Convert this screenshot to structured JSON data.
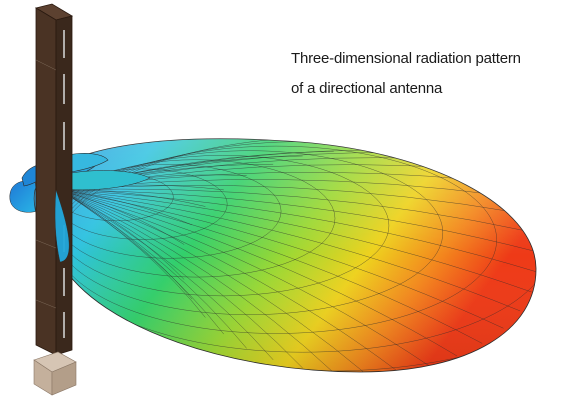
{
  "caption": {
    "line1": "Three-dimensional radiation pattern",
    "line2": "of a directional antenna"
  },
  "colors": {
    "background": "#ffffff",
    "mast": "#4a3324",
    "mast_edge": "#2a1a10",
    "mast_base": "#c9b8a8",
    "mesh_line": "#2b2b2b",
    "gradient_back": "#2f9be6",
    "gradient_mid": "#33cc55",
    "gradient_warm": "#e8d21c",
    "gradient_front": "#f0401a"
  },
  "icons": {
    "mast": "antenna-mast",
    "lobe": "radiation-lobe"
  }
}
